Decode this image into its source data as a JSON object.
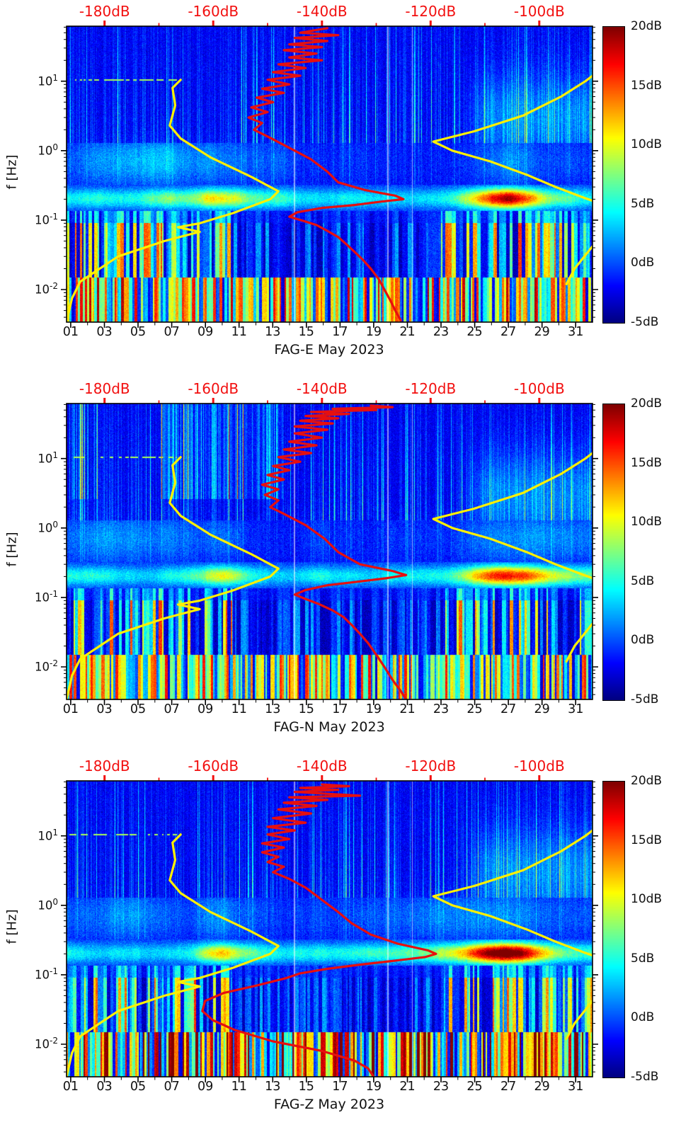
{
  "figure": {
    "background": "#ffffff",
    "colors": {
      "top_axis_labels": "#f20f0f",
      "mode_curve": "#e60f0f",
      "noise_model_curve": "#ffef00",
      "axis": "#000000",
      "text": "#111111"
    }
  },
  "y_axis": {
    "label": "f [Hz]",
    "scale": "log",
    "tick_labels": [
      {
        "base": "10",
        "exp": "1"
      },
      {
        "base": "10",
        "exp": "0"
      },
      {
        "base": "10",
        "exp": "-1"
      },
      {
        "base": "10",
        "exp": "-2"
      }
    ],
    "tick_values_hz": [
      10,
      1,
      0.1,
      0.01
    ],
    "range_hz": [
      0.0034,
      62
    ]
  },
  "x_axis": {
    "tick_labels": [
      "01",
      "03",
      "05",
      "07",
      "09",
      "11",
      "13",
      "15",
      "17",
      "19",
      "21",
      "23",
      "25",
      "27",
      "29",
      "31"
    ],
    "tick_values_day": [
      1,
      3,
      5,
      7,
      9,
      11,
      13,
      15,
      17,
      19,
      21,
      23,
      25,
      27,
      29,
      31
    ],
    "minor_tick_every_days": 1,
    "range_days": [
      0.75,
      32
    ]
  },
  "top_axis": {
    "tick_labels": [
      "-180dB",
      "-160dB",
      "-140dB",
      "-120dB",
      "-100dB"
    ],
    "tick_values_db": [
      -180,
      -160,
      -140,
      -120,
      -100
    ],
    "range_db": [
      -187,
      -90.2
    ]
  },
  "colorbar": {
    "tick_labels": [
      "20dB",
      "15dB",
      "10dB",
      "5dB",
      "0dB",
      "-5dB"
    ],
    "tick_values_db": [
      20,
      15,
      10,
      5,
      0,
      -5
    ],
    "range_db": [
      -5,
      20
    ],
    "colormap": "jet"
  },
  "chart_data": {
    "type": "heatmap",
    "subtype": "seismic power spectrogram (frequency vs day, power in dB) with probabilistic noise-model overlay curves plotted against top dB axis",
    "month": "May 2023",
    "heatmap_value_range_db": [
      -5,
      20
    ],
    "x_days_range": [
      0.75,
      32
    ],
    "f_hz_range": [
      0.0034,
      62
    ],
    "top_axis_db_range": [
      -187,
      -90.2
    ],
    "legend": {
      "yellow_curves": "low/high noise model levels vs frequency (dB on top axis)",
      "red_curve": "observed spectral mode level vs frequency (dB on top axis)"
    },
    "overlay_noise_models": {
      "low_model_db_hz": [
        [
          -187,
          0.0034
        ],
        [
          -186,
          0.0075
        ],
        [
          -184.5,
          0.013
        ],
        [
          -177.5,
          0.03
        ],
        [
          -169,
          0.05
        ],
        [
          -162.5,
          0.068
        ],
        [
          -166.5,
          0.079
        ],
        [
          -162.5,
          0.09
        ],
        [
          -156.5,
          0.125
        ],
        [
          -149.5,
          0.2
        ],
        [
          -148,
          0.26
        ],
        [
          -153,
          0.42
        ],
        [
          -160.5,
          0.8
        ],
        [
          -166,
          1.5
        ],
        [
          -168,
          2.3
        ],
        [
          -167,
          4.5
        ],
        [
          -167.5,
          8
        ],
        [
          -166,
          10.5
        ]
      ],
      "high_model_db_hz": [
        [
          -90.2,
          12
        ],
        [
          -91.5,
          10
        ],
        [
          -96,
          6
        ],
        [
          -103,
          3.2
        ],
        [
          -112,
          1.9
        ],
        [
          -119.5,
          1.35
        ],
        [
          -116,
          1
        ],
        [
          -109,
          0.7
        ],
        [
          -102,
          0.44
        ],
        [
          -97,
          0.3
        ],
        [
          -92.5,
          0.22
        ],
        [
          -90.2,
          0.19
        ]
      ],
      "high_model_lowfreq_db_hz": [
        [
          -90.2,
          0.042
        ],
        [
          -93.5,
          0.02
        ],
        [
          -95,
          0.012
        ]
      ]
    },
    "panels": [
      {
        "title": "FAG-E May 2023",
        "station_channel": "FAG-E",
        "mode_curve_db_hz": [
          [
            -139,
            58
          ],
          [
            -144,
            50
          ],
          [
            -137,
            46
          ],
          [
            -145,
            42
          ],
          [
            -139,
            38
          ],
          [
            -146,
            34
          ],
          [
            -140,
            31
          ],
          [
            -147,
            28
          ],
          [
            -141,
            25
          ],
          [
            -146,
            22
          ],
          [
            -140,
            20
          ],
          [
            -148,
            17.5
          ],
          [
            -143,
            15.5
          ],
          [
            -149,
            13.5
          ],
          [
            -144,
            12
          ],
          [
            -150,
            10.5
          ],
          [
            -146,
            9
          ],
          [
            -151,
            7.8
          ],
          [
            -147,
            6.8
          ],
          [
            -152,
            5.8
          ],
          [
            -149,
            5
          ],
          [
            -153,
            4.2
          ],
          [
            -150,
            3.6
          ],
          [
            -153.5,
            3
          ],
          [
            -151,
            2.5
          ],
          [
            -152.5,
            2
          ],
          [
            -150,
            1.6
          ],
          [
            -146,
            1.1
          ],
          [
            -142,
            0.75
          ],
          [
            -139,
            0.5
          ],
          [
            -137,
            0.35
          ],
          [
            -132,
            0.27
          ],
          [
            -126.5,
            0.225
          ],
          [
            -125,
            0.2
          ],
          [
            -129,
            0.185
          ],
          [
            -134,
            0.165
          ],
          [
            -140,
            0.15
          ],
          [
            -144.5,
            0.13
          ],
          [
            -146,
            0.112
          ],
          [
            -143.5,
            0.098
          ],
          [
            -141,
            0.085
          ],
          [
            -139,
            0.07
          ],
          [
            -137,
            0.057
          ],
          [
            -135.5,
            0.045
          ],
          [
            -134,
            0.035
          ],
          [
            -132.5,
            0.027
          ],
          [
            -131,
            0.02
          ],
          [
            -129.5,
            0.014
          ],
          [
            -128.5,
            0.01
          ],
          [
            -127.5,
            0.0072
          ],
          [
            -126.5,
            0.005
          ],
          [
            -125.5,
            0.0036
          ]
        ]
      },
      {
        "title": "FAG-N May 2023",
        "station_channel": "FAG-N",
        "mode_curve_db_hz": [
          [
            -131,
            58
          ],
          [
            -127,
            55
          ],
          [
            -138,
            52
          ],
          [
            -130,
            50
          ],
          [
            -142,
            47
          ],
          [
            -135,
            44
          ],
          [
            -143,
            41
          ],
          [
            -137,
            38
          ],
          [
            -144,
            35
          ],
          [
            -138,
            32
          ],
          [
            -145,
            29
          ],
          [
            -139,
            26
          ],
          [
            -145,
            23
          ],
          [
            -140,
            20
          ],
          [
            -146,
            17.5
          ],
          [
            -141,
            15.5
          ],
          [
            -147,
            13.5
          ],
          [
            -142,
            12
          ],
          [
            -148,
            10.5
          ],
          [
            -144,
            9
          ],
          [
            -149,
            7.8
          ],
          [
            -146,
            6.8
          ],
          [
            -150,
            5.8
          ],
          [
            -147,
            5
          ],
          [
            -151,
            4.2
          ],
          [
            -148,
            3.6
          ],
          [
            -150.5,
            3
          ],
          [
            -148,
            2.5
          ],
          [
            -149.5,
            2
          ],
          [
            -147,
            1.6
          ],
          [
            -143,
            1.1
          ],
          [
            -139.5,
            0.7
          ],
          [
            -137,
            0.45
          ],
          [
            -133,
            0.3
          ],
          [
            -127,
            0.24
          ],
          [
            -124.5,
            0.21
          ],
          [
            -128,
            0.19
          ],
          [
            -133,
            0.17
          ],
          [
            -139,
            0.15
          ],
          [
            -143,
            0.128
          ],
          [
            -145,
            0.11
          ],
          [
            -143,
            0.095
          ],
          [
            -140.5,
            0.08
          ],
          [
            -138,
            0.065
          ],
          [
            -136,
            0.052
          ],
          [
            -134.5,
            0.04
          ],
          [
            -133,
            0.03
          ],
          [
            -131.5,
            0.022
          ],
          [
            -130,
            0.015
          ],
          [
            -128.5,
            0.01
          ],
          [
            -127,
            0.0065
          ],
          [
            -125.5,
            0.0045
          ],
          [
            -124.5,
            0.0034
          ]
        ]
      },
      {
        "title": "FAG-Z May 2023",
        "station_channel": "FAG-Z",
        "mode_curve_db_hz": [
          [
            -140,
            55
          ],
          [
            -135,
            52
          ],
          [
            -144,
            49
          ],
          [
            -137,
            46
          ],
          [
            -145,
            43
          ],
          [
            -138,
            40
          ],
          [
            -133,
            38
          ],
          [
            -146,
            36
          ],
          [
            -139,
            33
          ],
          [
            -147,
            30
          ],
          [
            -141,
            27
          ],
          [
            -148,
            24
          ],
          [
            -142,
            21
          ],
          [
            -149,
            18
          ],
          [
            -143,
            15.5
          ],
          [
            -150,
            13.5
          ],
          [
            -145,
            12
          ],
          [
            -150,
            10.5
          ],
          [
            -146,
            9
          ],
          [
            -151,
            7.8
          ],
          [
            -147,
            6.8
          ],
          [
            -151,
            5.8
          ],
          [
            -148,
            5
          ],
          [
            -150,
            4.2
          ],
          [
            -147,
            3.6
          ],
          [
            -149,
            3
          ],
          [
            -146,
            2.4
          ],
          [
            -143,
            1.8
          ],
          [
            -140,
            1.2
          ],
          [
            -137,
            0.8
          ],
          [
            -134.5,
            0.55
          ],
          [
            -131,
            0.38
          ],
          [
            -126,
            0.28
          ],
          [
            -120.5,
            0.225
          ],
          [
            -119,
            0.2
          ],
          [
            -121,
            0.18
          ],
          [
            -127,
            0.158
          ],
          [
            -133,
            0.14
          ],
          [
            -139,
            0.122
          ],
          [
            -144,
            0.105
          ],
          [
            -146.5,
            0.09
          ],
          [
            -152,
            0.07
          ],
          [
            -158,
            0.055
          ],
          [
            -161.5,
            0.042
          ],
          [
            -162,
            0.03
          ],
          [
            -160,
            0.022
          ],
          [
            -156,
            0.016
          ],
          [
            -149,
            0.011
          ],
          [
            -140,
            0.008
          ],
          [
            -134,
            0.0058
          ],
          [
            -131.5,
            0.0045
          ],
          [
            -130.5,
            0.0034
          ]
        ]
      }
    ]
  }
}
